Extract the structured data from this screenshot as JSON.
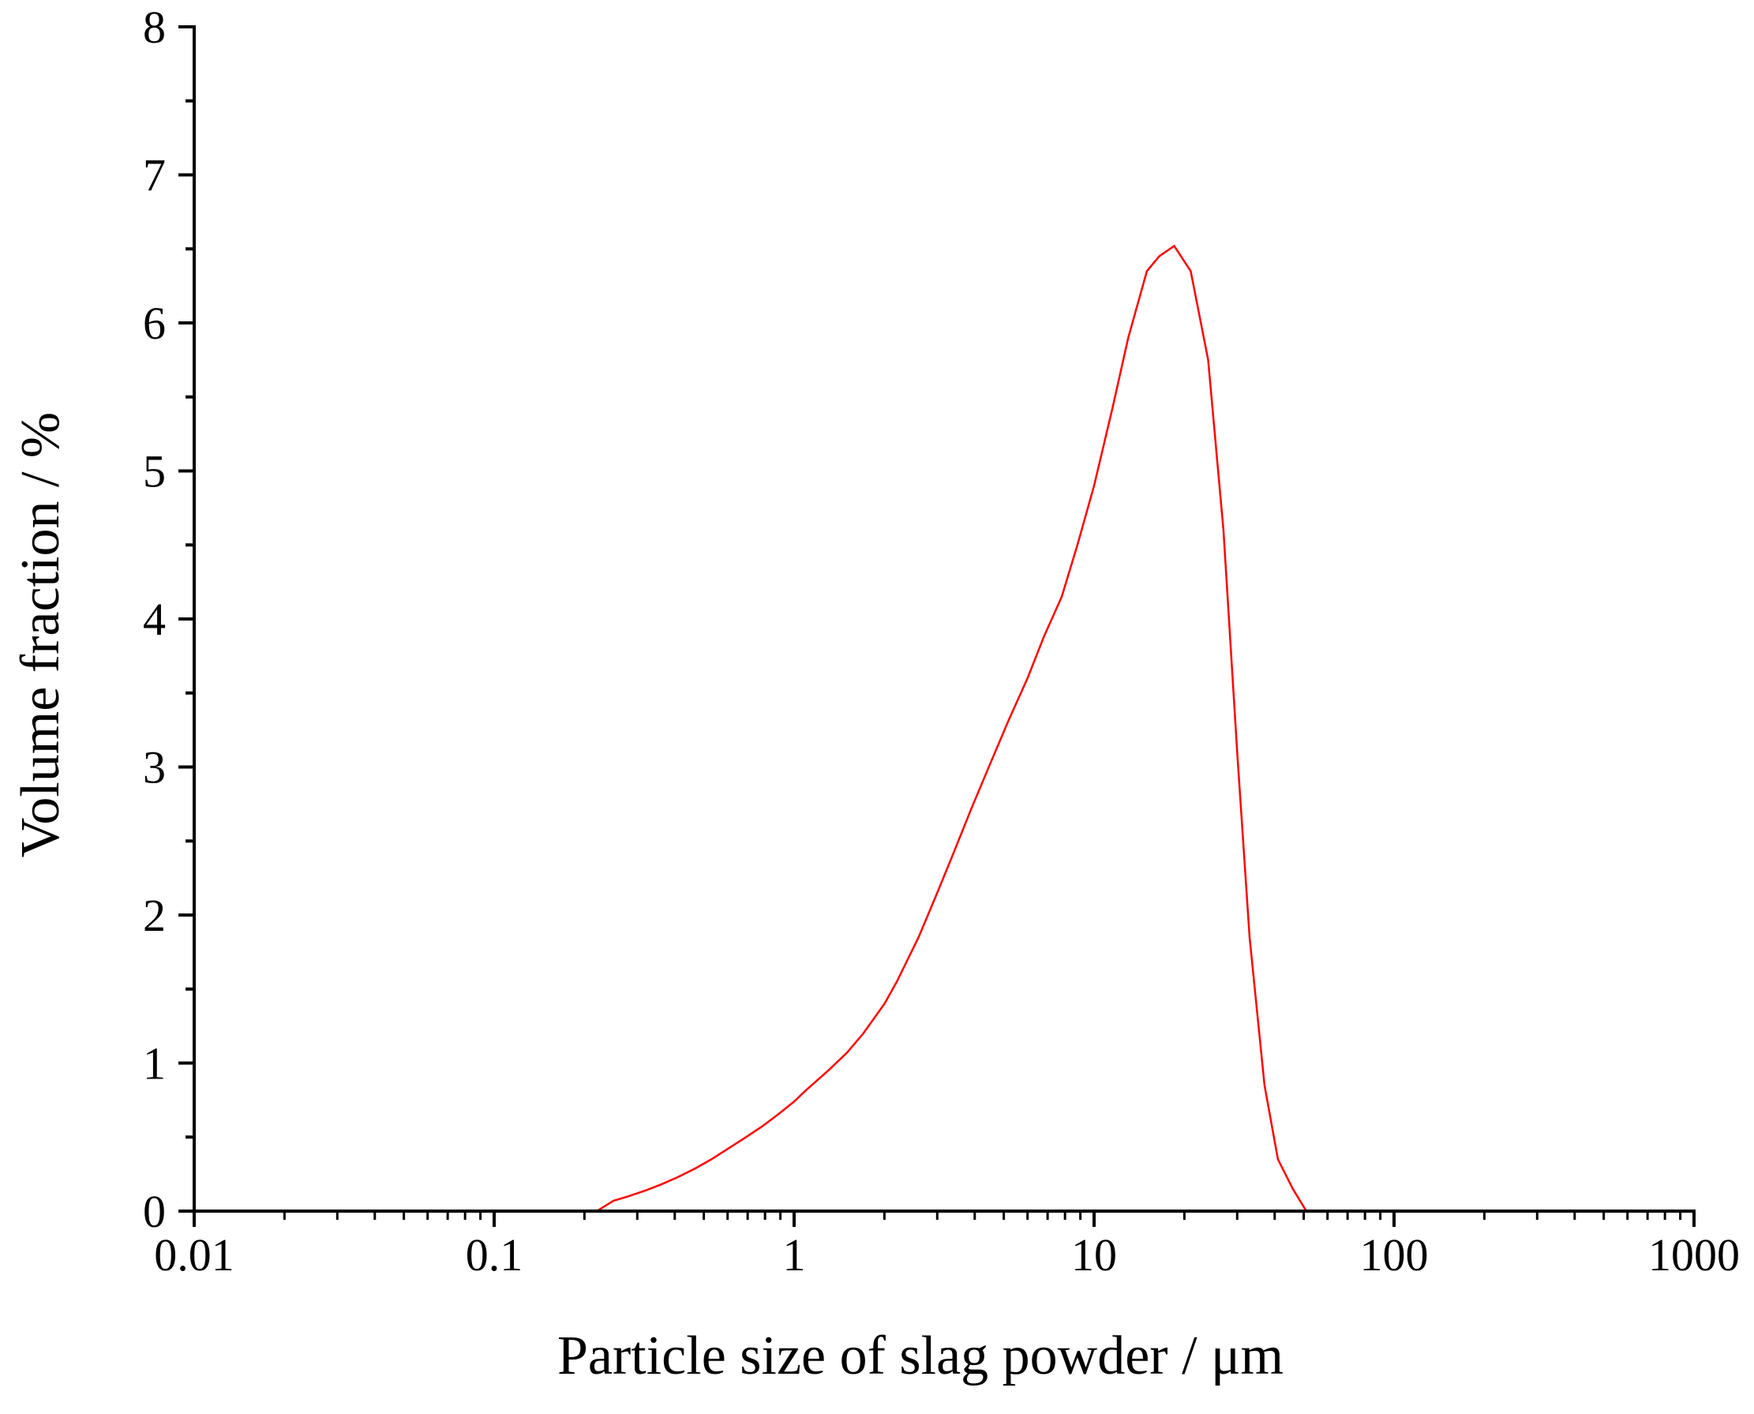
{
  "chart_data": {
    "type": "line",
    "title": "",
    "xlabel": "Particle size of slag powder / μm",
    "ylabel": "Volume fraction / %",
    "xscale": "log",
    "xlim": [
      0.01,
      1000
    ],
    "ylim": [
      0,
      8
    ],
    "x_ticks": [
      {
        "value": 0.01,
        "label": "0.01"
      },
      {
        "value": 0.1,
        "label": "0.1"
      },
      {
        "value": 1,
        "label": "1"
      },
      {
        "value": 10,
        "label": "10"
      },
      {
        "value": 100,
        "label": "100"
      },
      {
        "value": 1000,
        "label": "1000"
      }
    ],
    "y_ticks": [
      {
        "value": 0,
        "label": "0"
      },
      {
        "value": 1,
        "label": "1"
      },
      {
        "value": 2,
        "label": "2"
      },
      {
        "value": 3,
        "label": "3"
      },
      {
        "value": 4,
        "label": "4"
      },
      {
        "value": 5,
        "label": "5"
      },
      {
        "value": 6,
        "label": "6"
      },
      {
        "value": 7,
        "label": "7"
      },
      {
        "value": 8,
        "label": "8"
      }
    ],
    "grid": false,
    "legend": "none",
    "series": [
      {
        "color": "#ff0000",
        "x": [
          0.01,
          0.1,
          0.22,
          0.25,
          0.28,
          0.32,
          0.36,
          0.41,
          0.47,
          0.53,
          0.6,
          0.68,
          0.78,
          0.88,
          1.0,
          1.1,
          1.3,
          1.5,
          1.7,
          2.0,
          2.2,
          2.6,
          3.0,
          3.4,
          3.9,
          4.5,
          5.2,
          6.0,
          6.8,
          7.8,
          8.8,
          10,
          11.5,
          13,
          15,
          16.5,
          18.5,
          21,
          24,
          27,
          30,
          33,
          37,
          41,
          46,
          51,
          60,
          100,
          1000
        ],
        "y": [
          0,
          0,
          0,
          0.07,
          0.1,
          0.14,
          0.18,
          0.23,
          0.29,
          0.35,
          0.42,
          0.49,
          0.57,
          0.65,
          0.74,
          0.82,
          0.95,
          1.07,
          1.2,
          1.4,
          1.55,
          1.85,
          2.15,
          2.42,
          2.72,
          3.02,
          3.32,
          3.6,
          3.88,
          4.15,
          4.5,
          4.9,
          5.42,
          5.9,
          6.35,
          6.45,
          6.52,
          6.35,
          5.75,
          4.6,
          3.1,
          1.85,
          0.85,
          0.35,
          0.15,
          0,
          0,
          0,
          0
        ]
      }
    ]
  }
}
